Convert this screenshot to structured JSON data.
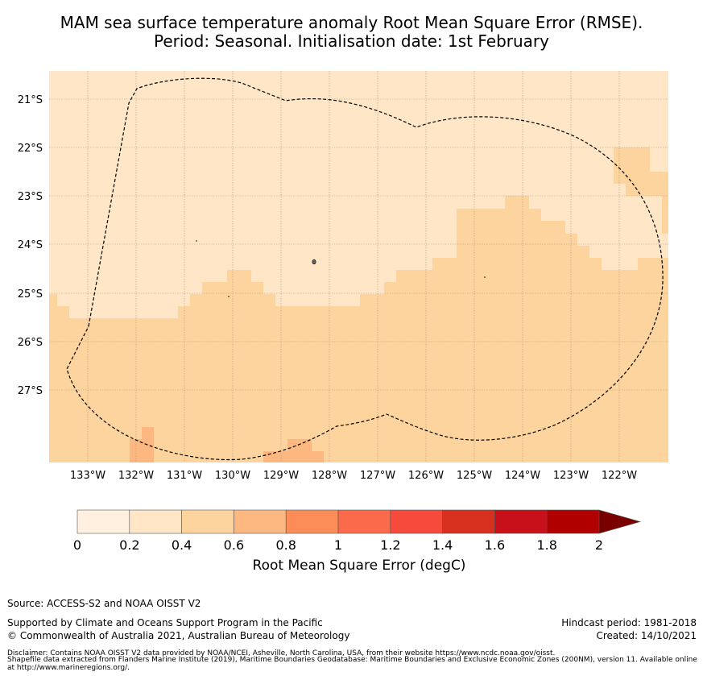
{
  "title": {
    "line1": "MAM sea surface temperature anomaly Root Mean Square Error (RMSE).",
    "line2": "Period: Seasonal. Initialisation date: 1st February"
  },
  "map": {
    "lat_labels": [
      "21°S",
      "22°S",
      "23°S",
      "24°S",
      "25°S",
      "26°S",
      "27°S"
    ],
    "lon_labels": [
      "133°W",
      "132°W",
      "131°W",
      "130°W",
      "129°W",
      "128°W",
      "127°W",
      "126°W",
      "125°W",
      "124°W",
      "123°W",
      "122°W"
    ],
    "colors": {
      "bin_0_0_2": "#fff0e0",
      "bin_0_2_0_4": "#fee6c7",
      "bin_0_4_0_6": "#fdd49e",
      "bin_0_6_0_8": "#fdb882",
      "land": "#666666",
      "boundary": "#000000",
      "grid": "#9a8a7a"
    }
  },
  "colorbar": {
    "ticks": [
      "0",
      "0.2",
      "0.4",
      "0.6",
      "0.8",
      "1",
      "1.2",
      "1.4",
      "1.6",
      "1.8",
      "2"
    ],
    "colors": [
      "#fff0e0",
      "#fee6c7",
      "#fdd49e",
      "#fdb882",
      "#fc8d59",
      "#fb6a4a",
      "#f54a3c",
      "#d7301f",
      "#c8101a",
      "#b00000",
      "#7a0000"
    ],
    "label": "Root Mean Square Error (degC)"
  },
  "footer": {
    "source": "Source: ACCESS-S2 and NOAA OISST V2",
    "supported": "Supported by Climate and Oceans Support Program in the Pacific",
    "copyright": "© Commonwealth of Australia 2021, Australian Bureau of Meteorology",
    "hindcast": "Hindcast period: 1981-2018",
    "created": "Created: 14/10/2021",
    "disclaimer1": "Disclaimer: Contains NOAA OISST V2 data provided by NOAA/NCEI, Asheville, North Carolina, USA, from their website https://www.ncdc.noaa.gov/oisst.",
    "disclaimer2": "Shapefile data extracted from Flanders Marine Institute (2019), Maritime Boundaries Geodatabase: Maritime Boundaries and Exclusive Economic Zones (200NM), version 11. Available online at http://www.marineregions.org/."
  }
}
